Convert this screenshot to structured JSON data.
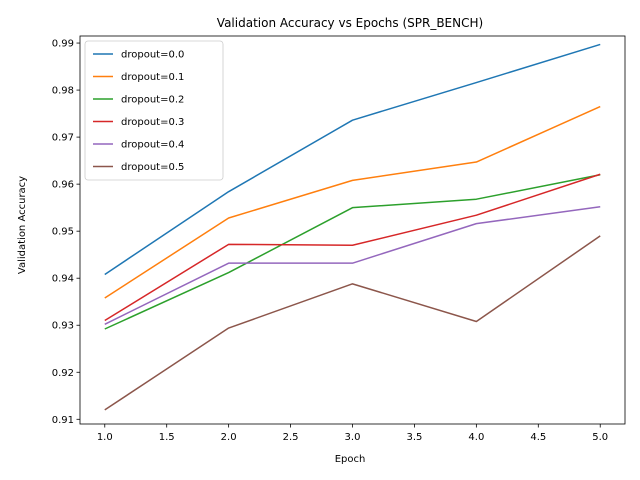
{
  "chart_data": {
    "type": "line",
    "title": "Validation Accuracy vs Epochs (SPR_BENCH)",
    "xlabel": "Epoch",
    "ylabel": "Validation Accuracy",
    "xlim": [
      0.8,
      5.2
    ],
    "ylim": [
      0.909,
      0.9915
    ],
    "xticks": [
      1.0,
      1.5,
      2.0,
      2.5,
      3.0,
      3.5,
      4.0,
      4.5,
      5.0
    ],
    "xtick_labels": [
      "1.0",
      "1.5",
      "2.0",
      "2.5",
      "3.0",
      "3.5",
      "4.0",
      "4.5",
      "5.0"
    ],
    "yticks": [
      0.91,
      0.92,
      0.93,
      0.94,
      0.95,
      0.96,
      0.97,
      0.98,
      0.99
    ],
    "ytick_labels": [
      "0.91",
      "0.92",
      "0.93",
      "0.94",
      "0.95",
      "0.96",
      "0.97",
      "0.98",
      "0.99"
    ],
    "grid": false,
    "legend_position": "top-left",
    "x": [
      1,
      2,
      3,
      4,
      5
    ],
    "series": [
      {
        "name": "dropout=0.0",
        "color": "#1f77b4",
        "values": [
          0.9408,
          0.9584,
          0.9736,
          0.9816,
          0.9897
        ]
      },
      {
        "name": "dropout=0.1",
        "color": "#ff7f0e",
        "values": [
          0.9358,
          0.9528,
          0.9608,
          0.9647,
          0.9765
        ]
      },
      {
        "name": "dropout=0.2",
        "color": "#2ca02c",
        "values": [
          0.9292,
          0.9412,
          0.955,
          0.9568,
          0.962
        ]
      },
      {
        "name": "dropout=0.3",
        "color": "#d62728",
        "values": [
          0.931,
          0.9472,
          0.947,
          0.9534,
          0.9621
        ]
      },
      {
        "name": "dropout=0.4",
        "color": "#9467bd",
        "values": [
          0.9302,
          0.9432,
          0.9432,
          0.9516,
          0.9552
        ]
      },
      {
        "name": "dropout=0.5",
        "color": "#8c564b",
        "values": [
          0.912,
          0.9294,
          0.9388,
          0.9308,
          0.949
        ]
      }
    ]
  }
}
